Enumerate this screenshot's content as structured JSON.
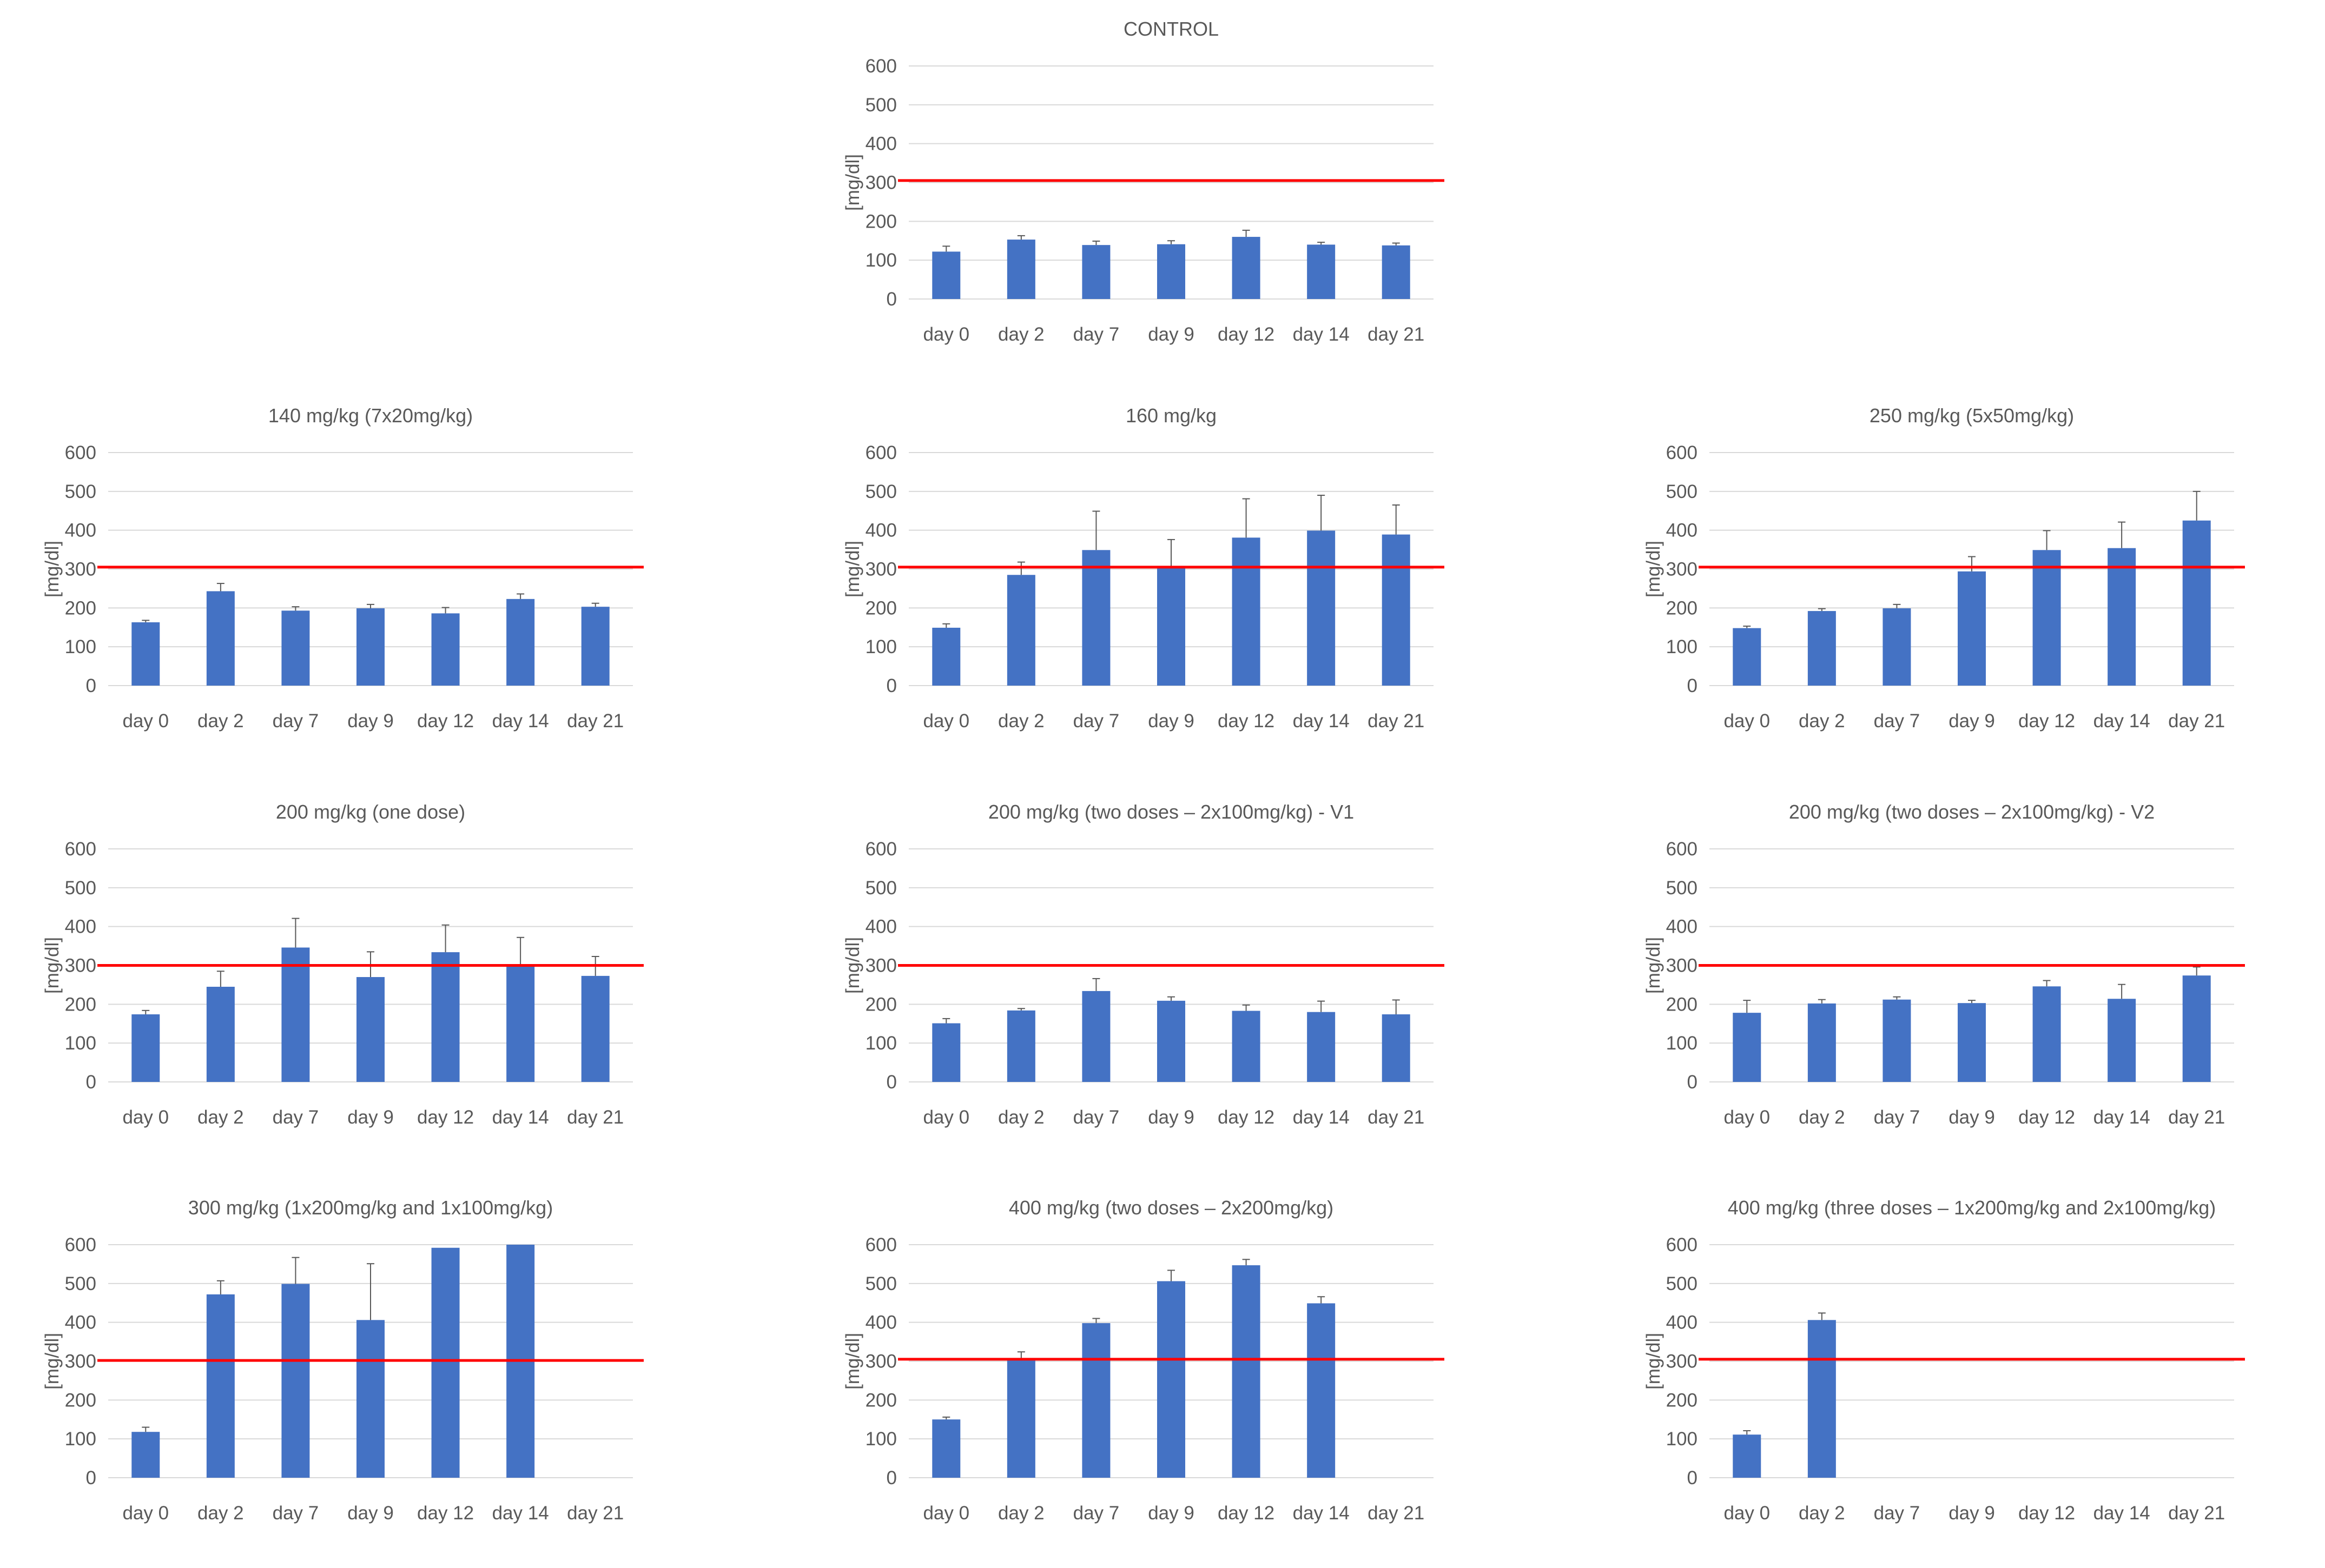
{
  "figure": {
    "y_axis_label": "[mg/dl]"
  },
  "colors": {
    "bar": "#4472c4",
    "threshold": "#ff0000",
    "grid": "#d9d9d9",
    "text": "#595959"
  },
  "chart_data": [
    {
      "type": "bar",
      "title": "CONTROL",
      "ylabel": "[mg/dl]",
      "ylim": [
        0,
        600
      ],
      "yticks": [
        0,
        100,
        200,
        300,
        400,
        500,
        600
      ],
      "categories": [
        "day 0",
        "day 2",
        "day 7",
        "day 9",
        "day 12",
        "day 14",
        "day 21"
      ],
      "values": [
        122,
        153,
        139,
        141,
        160,
        140,
        138
      ],
      "errors": [
        14,
        10,
        10,
        9,
        17,
        6,
        6
      ],
      "threshold": 305
    },
    {
      "type": "bar",
      "title": "140 mg/kg (7x20mg/kg)",
      "ylabel": "[mg/dl]",
      "ylim": [
        0,
        600
      ],
      "yticks": [
        0,
        100,
        200,
        300,
        400,
        500,
        600
      ],
      "categories": [
        "day 0",
        "day 2",
        "day 7",
        "day 9",
        "day 12",
        "day 14",
        "day 21"
      ],
      "values": [
        163,
        243,
        193,
        199,
        186,
        223,
        203
      ],
      "errors": [
        5,
        20,
        10,
        10,
        15,
        13,
        9
      ],
      "threshold": 305
    },
    {
      "type": "bar",
      "title": "160 mg/kg",
      "ylabel": "[mg/dl]",
      "ylim": [
        0,
        600
      ],
      "yticks": [
        0,
        100,
        200,
        300,
        400,
        500,
        600
      ],
      "categories": [
        "day 0",
        "day 2",
        "day 7",
        "day 9",
        "day 12",
        "day 14",
        "day 21"
      ],
      "values": [
        149,
        285,
        349,
        306,
        381,
        399,
        389
      ],
      "errors": [
        10,
        33,
        100,
        70,
        100,
        91,
        76
      ],
      "threshold": 305
    },
    {
      "type": "bar",
      "title": "250 mg/kg (5x50mg/kg)",
      "ylabel": "[mg/dl]",
      "ylim": [
        0,
        600
      ],
      "yticks": [
        0,
        100,
        200,
        300,
        400,
        500,
        600
      ],
      "categories": [
        "day 0",
        "day 2",
        "day 7",
        "day 9",
        "day 12",
        "day 14",
        "day 21"
      ],
      "values": [
        148,
        192,
        199,
        294,
        349,
        354,
        425
      ],
      "errors": [
        5,
        6,
        10,
        38,
        50,
        67,
        75
      ],
      "threshold": 305
    },
    {
      "type": "bar",
      "title": "200 mg/kg (one dose)",
      "ylabel": "[mg/dl]",
      "ylim": [
        0,
        600
      ],
      "yticks": [
        0,
        100,
        200,
        300,
        400,
        500,
        600
      ],
      "categories": [
        "day 0",
        "day 2",
        "day 7",
        "day 9",
        "day 12",
        "day 14",
        "day 21"
      ],
      "values": [
        174,
        245,
        346,
        270,
        334,
        297,
        273
      ],
      "errors": [
        10,
        40,
        75,
        65,
        70,
        75,
        50
      ],
      "threshold": 300
    },
    {
      "type": "bar",
      "title": "200 mg/kg (two doses – 2x100mg/kg) - V1",
      "ylabel": "[mg/dl]",
      "ylim": [
        0,
        600
      ],
      "yticks": [
        0,
        100,
        200,
        300,
        400,
        500,
        600
      ],
      "categories": [
        "day 0",
        "day 2",
        "day 7",
        "day 9",
        "day 12",
        "day 14",
        "day 21"
      ],
      "values": [
        151,
        184,
        234,
        209,
        183,
        180,
        174
      ],
      "errors": [
        12,
        5,
        32,
        10,
        15,
        28,
        37
      ],
      "threshold": 300
    },
    {
      "type": "bar",
      "title": "200 mg/kg (two doses – 2x100mg/kg) - V2",
      "ylabel": "[mg/dl]",
      "ylim": [
        0,
        600
      ],
      "yticks": [
        0,
        100,
        200,
        300,
        400,
        500,
        600
      ],
      "categories": [
        "day 0",
        "day 2",
        "day 7",
        "day 9",
        "day 12",
        "day 14",
        "day 21"
      ],
      "values": [
        178,
        202,
        212,
        203,
        246,
        214,
        274
      ],
      "errors": [
        32,
        10,
        7,
        7,
        15,
        37,
        22
      ],
      "threshold": 300
    },
    {
      "type": "bar",
      "title": "300 mg/kg (1x200mg/kg and 1x100mg/kg)",
      "ylabel": "[mg/dl]",
      "ylim": [
        0,
        600
      ],
      "yticks": [
        0,
        100,
        200,
        300,
        400,
        500,
        600
      ],
      "categories": [
        "day 0",
        "day 2",
        "day 7",
        "day 9",
        "day 12",
        "day 14",
        "day 21"
      ],
      "values": [
        118,
        472,
        499,
        406,
        592,
        600,
        null
      ],
      "errors": [
        12,
        35,
        68,
        145,
        0,
        0,
        null
      ],
      "threshold": 302
    },
    {
      "type": "bar",
      "title": "400 mg/kg (two doses – 2x200mg/kg)",
      "ylabel": "[mg/dl]",
      "ylim": [
        0,
        600
      ],
      "yticks": [
        0,
        100,
        200,
        300,
        400,
        500,
        600
      ],
      "categories": [
        "day 0",
        "day 2",
        "day 7",
        "day 9",
        "day 12",
        "day 14",
        "day 21"
      ],
      "values": [
        150,
        302,
        398,
        506,
        547,
        449,
        null
      ],
      "errors": [
        6,
        22,
        12,
        28,
        15,
        17,
        null
      ],
      "threshold": 305
    },
    {
      "type": "bar",
      "title": "400 mg/kg (three doses – 1x200mg/kg and 2x100mg/kg)",
      "ylabel": "[mg/dl]",
      "ylim": [
        0,
        600
      ],
      "yticks": [
        0,
        100,
        200,
        300,
        400,
        500,
        600
      ],
      "categories": [
        "day 0",
        "day 2",
        "day 7",
        "day 9",
        "day 12",
        "day 14",
        "day 21"
      ],
      "values": [
        111,
        406,
        null,
        null,
        null,
        null,
        null
      ],
      "errors": [
        10,
        18,
        null,
        null,
        null,
        null,
        null
      ],
      "threshold": 305
    }
  ]
}
